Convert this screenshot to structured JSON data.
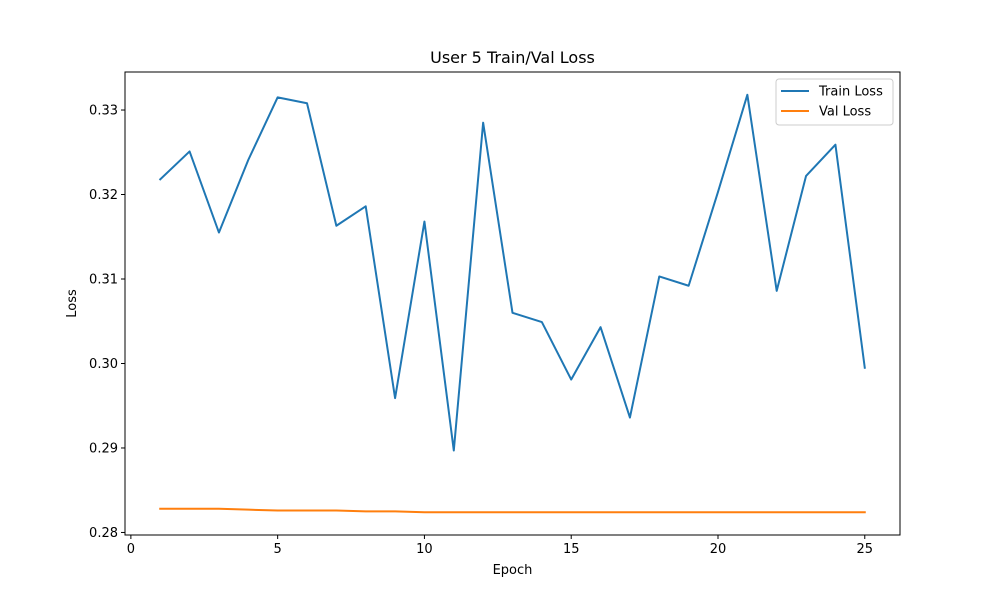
{
  "chart_data": {
    "type": "line",
    "title": "User 5 Train/Val Loss",
    "xlabel": "Epoch",
    "ylabel": "Loss",
    "xlim": [
      -0.2,
      26.2
    ],
    "ylim": [
      0.2797,
      0.3345
    ],
    "xticks": [
      0,
      5,
      10,
      15,
      20,
      25
    ],
    "yticks": [
      0.28,
      0.29,
      0.3,
      0.31,
      0.32,
      0.33
    ],
    "ytick_labels": [
      "0.28",
      "0.29",
      "0.30",
      "0.31",
      "0.32",
      "0.33"
    ],
    "grid": false,
    "legend_position": "top-right",
    "x": [
      1,
      2,
      3,
      4,
      5,
      6,
      7,
      8,
      9,
      10,
      11,
      12,
      13,
      14,
      15,
      16,
      17,
      18,
      19,
      20,
      21,
      22,
      23,
      24,
      25
    ],
    "series": [
      {
        "name": "Train Loss",
        "color": "#1f77b4",
        "values": [
          0.3218,
          0.3251,
          0.3155,
          0.3241,
          0.3315,
          0.3308,
          0.3163,
          0.3186,
          0.2959,
          0.3168,
          0.2897,
          0.3285,
          0.306,
          0.3049,
          0.2981,
          0.3043,
          0.2936,
          0.3103,
          0.3092,
          0.3203,
          0.3318,
          0.3086,
          0.3222,
          0.3259,
          0.2995
        ]
      },
      {
        "name": "Val Loss",
        "color": "#ff7f0e",
        "values": [
          0.2828,
          0.2828,
          0.2828,
          0.2827,
          0.2826,
          0.2826,
          0.2826,
          0.2825,
          0.2825,
          0.2824,
          0.2824,
          0.2824,
          0.2824,
          0.2824,
          0.2824,
          0.2824,
          0.2824,
          0.2824,
          0.2824,
          0.2824,
          0.2824,
          0.2824,
          0.2824,
          0.2824,
          0.2824
        ]
      }
    ]
  }
}
